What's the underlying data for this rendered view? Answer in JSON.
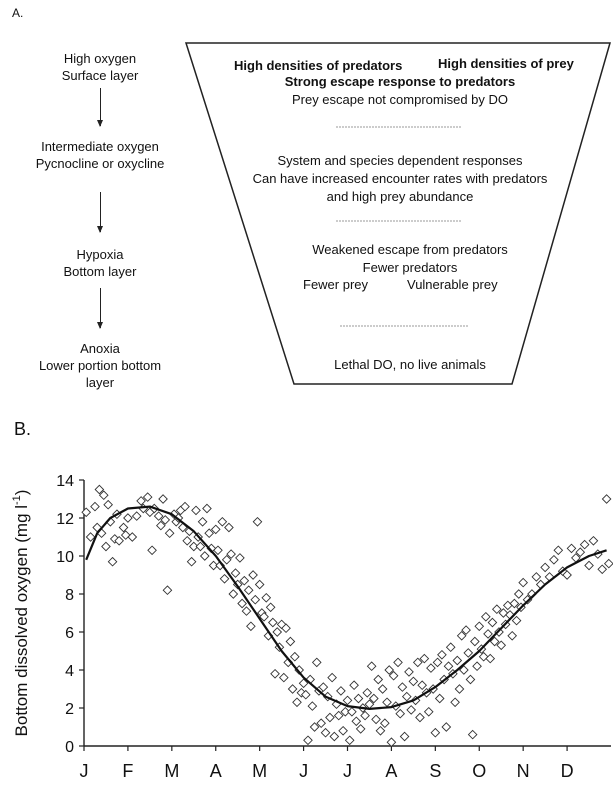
{
  "panel_a": {
    "label": "A.",
    "stages": [
      {
        "line1": "High oxygen",
        "line2": "Surface layer",
        "line3": ""
      },
      {
        "line1": "Intermediate oxygen",
        "line2": "Pycnocline or oxycline",
        "line3": ""
      },
      {
        "line1": "Hypoxia",
        "line2": "Bottom layer",
        "line3": ""
      },
      {
        "line1": "Anoxia",
        "line2": "Lower portion bottom",
        "line3": "layer"
      }
    ],
    "funnel": {
      "top_left": "High densities of predators",
      "top_right": "High densities of prey",
      "top_line2": "Strong escape response to predators",
      "top_line3": "Prey escape not compromised by DO",
      "mid_line1": "System and species dependent responses",
      "mid_line2": "Can have increased encounter rates with predators",
      "mid_line3": "and high prey abundance",
      "low_line1": "Weakened escape from predators",
      "low_line2": "Fewer predators",
      "low_left": "Fewer prey",
      "low_right": "Vulnerable prey",
      "bottom_line1": "Lethal DO, no live animals"
    }
  },
  "panel_b": {
    "label": "B.",
    "chart_data": {
      "type": "scatter",
      "title": "",
      "xlabel": "",
      "ylabel": "Bottom dissolved oxygen (mg l-1)",
      "ylabel_parts": {
        "main": "Bottom dissolved oxygen (mg l",
        "sup": "-1",
        "close": ")"
      },
      "ylim": [
        0,
        14
      ],
      "yticks": [
        0,
        2,
        4,
        6,
        8,
        10,
        12,
        14
      ],
      "xlim": [
        0,
        12
      ],
      "months": [
        "J",
        "F",
        "M",
        "A",
        "M",
        "J",
        "J",
        "A",
        "S",
        "O",
        "N",
        "D"
      ],
      "grid": false,
      "series": [
        {
          "marker": "diamond",
          "points": [
            [
              0.05,
              12.3
            ],
            [
              0.15,
              11.0
            ],
            [
              0.25,
              12.6
            ],
            [
              0.3,
              11.5
            ],
            [
              0.35,
              13.5
            ],
            [
              0.4,
              11.2
            ],
            [
              0.45,
              13.2
            ],
            [
              0.5,
              10.5
            ],
            [
              0.55,
              12.7
            ],
            [
              0.6,
              11.8
            ],
            [
              0.65,
              9.7
            ],
            [
              0.7,
              10.9
            ],
            [
              0.75,
              12.2
            ],
            [
              0.8,
              10.8
            ],
            [
              0.9,
              11.5
            ],
            [
              0.95,
              11.1
            ],
            [
              1.0,
              12.0
            ],
            [
              1.1,
              11.0
            ],
            [
              1.2,
              12.1
            ],
            [
              1.3,
              12.9
            ],
            [
              1.35,
              12.5
            ],
            [
              1.45,
              13.1
            ],
            [
              1.5,
              12.3
            ],
            [
              1.55,
              10.3
            ],
            [
              1.6,
              12.5
            ],
            [
              1.7,
              12.1
            ],
            [
              1.75,
              11.6
            ],
            [
              1.8,
              13.0
            ],
            [
              1.85,
              11.9
            ],
            [
              1.9,
              8.2
            ],
            [
              1.95,
              11.2
            ],
            [
              2.05,
              12.2
            ],
            [
              2.1,
              11.8
            ],
            [
              2.15,
              12.0
            ],
            [
              2.2,
              12.4
            ],
            [
              2.25,
              11.5
            ],
            [
              2.3,
              12.6
            ],
            [
              2.35,
              10.8
            ],
            [
              2.4,
              11.3
            ],
            [
              2.45,
              9.7
            ],
            [
              2.5,
              10.5
            ],
            [
              2.55,
              12.4
            ],
            [
              2.6,
              11.0
            ],
            [
              2.65,
              10.5
            ],
            [
              2.7,
              11.8
            ],
            [
              2.75,
              10.0
            ],
            [
              2.8,
              12.5
            ],
            [
              2.85,
              11.2
            ],
            [
              2.9,
              10.4
            ],
            [
              2.95,
              9.5
            ],
            [
              3.0,
              11.4
            ],
            [
              3.05,
              10.3
            ],
            [
              3.1,
              9.5
            ],
            [
              3.15,
              11.8
            ],
            [
              3.2,
              8.8
            ],
            [
              3.25,
              9.8
            ],
            [
              3.3,
              11.5
            ],
            [
              3.35,
              10.1
            ],
            [
              3.4,
              8.0
            ],
            [
              3.45,
              9.1
            ],
            [
              3.5,
              8.5
            ],
            [
              3.55,
              9.9
            ],
            [
              3.6,
              7.5
            ],
            [
              3.65,
              8.7
            ],
            [
              3.7,
              7.1
            ],
            [
              3.75,
              8.2
            ],
            [
              3.8,
              6.3
            ],
            [
              3.85,
              9.0
            ],
            [
              3.9,
              7.7
            ],
            [
              3.95,
              11.8
            ],
            [
              4.0,
              8.5
            ],
            [
              4.05,
              7.0
            ],
            [
              4.1,
              6.8
            ],
            [
              4.15,
              7.8
            ],
            [
              4.2,
              5.8
            ],
            [
              4.25,
              7.3
            ],
            [
              4.3,
              6.5
            ],
            [
              4.35,
              3.8
            ],
            [
              4.4,
              6.0
            ],
            [
              4.45,
              5.2
            ],
            [
              4.5,
              6.4
            ],
            [
              4.55,
              3.6
            ],
            [
              4.6,
              6.2
            ],
            [
              4.65,
              4.4
            ],
            [
              4.7,
              5.5
            ],
            [
              4.75,
              3.0
            ],
            [
              4.8,
              4.7
            ],
            [
              4.85,
              2.3
            ],
            [
              4.9,
              4.0
            ],
            [
              4.95,
              2.8
            ],
            [
              5.0,
              3.3
            ],
            [
              5.05,
              2.7
            ],
            [
              5.1,
              0.3
            ],
            [
              5.15,
              3.5
            ],
            [
              5.2,
              2.1
            ],
            [
              5.25,
              1.0
            ],
            [
              5.3,
              4.4
            ],
            [
              5.35,
              2.9
            ],
            [
              5.4,
              1.2
            ],
            [
              5.45,
              3.1
            ],
            [
              5.5,
              0.7
            ],
            [
              5.55,
              2.6
            ],
            [
              5.6,
              1.5
            ],
            [
              5.65,
              3.6
            ],
            [
              5.7,
              0.5
            ],
            [
              5.75,
              2.2
            ],
            [
              5.8,
              1.6
            ],
            [
              5.85,
              2.9
            ],
            [
              5.9,
              0.8
            ],
            [
              5.95,
              1.8
            ],
            [
              6.0,
              2.4
            ],
            [
              6.05,
              0.3
            ],
            [
              6.1,
              1.8
            ],
            [
              6.15,
              3.2
            ],
            [
              6.2,
              1.3
            ],
            [
              6.25,
              2.5
            ],
            [
              6.3,
              0.9
            ],
            [
              6.35,
              2.0
            ],
            [
              6.4,
              1.6
            ],
            [
              6.45,
              2.8
            ],
            [
              6.5,
              2.2
            ],
            [
              6.55,
              4.2
            ],
            [
              6.6,
              2.5
            ],
            [
              6.65,
              1.4
            ],
            [
              6.7,
              3.5
            ],
            [
              6.75,
              0.8
            ],
            [
              6.8,
              3.0
            ],
            [
              6.85,
              1.2
            ],
            [
              6.9,
              2.3
            ],
            [
              6.95,
              4.0
            ],
            [
              7.0,
              0.2
            ],
            [
              7.05,
              3.7
            ],
            [
              7.1,
              2.1
            ],
            [
              7.15,
              4.4
            ],
            [
              7.2,
              1.7
            ],
            [
              7.25,
              3.1
            ],
            [
              7.3,
              0.5
            ],
            [
              7.35,
              2.6
            ],
            [
              7.4,
              3.9
            ],
            [
              7.45,
              1.9
            ],
            [
              7.5,
              3.4
            ],
            [
              7.55,
              2.4
            ],
            [
              7.6,
              4.4
            ],
            [
              7.65,
              1.5
            ],
            [
              7.7,
              3.2
            ],
            [
              7.75,
              4.6
            ],
            [
              7.8,
              2.8
            ],
            [
              7.85,
              1.8
            ],
            [
              7.9,
              4.1
            ],
            [
              7.95,
              3.0
            ],
            [
              8.0,
              0.7
            ],
            [
              8.05,
              4.4
            ],
            [
              8.1,
              2.5
            ],
            [
              8.15,
              4.8
            ],
            [
              8.2,
              3.5
            ],
            [
              8.25,
              1.0
            ],
            [
              8.3,
              4.2
            ],
            [
              8.35,
              5.2
            ],
            [
              8.4,
              3.8
            ],
            [
              8.45,
              2.3
            ],
            [
              8.5,
              4.5
            ],
            [
              8.55,
              3.0
            ],
            [
              8.6,
              5.8
            ],
            [
              8.65,
              4.0
            ],
            [
              8.7,
              6.1
            ],
            [
              8.75,
              4.9
            ],
            [
              8.8,
              3.5
            ],
            [
              8.85,
              0.6
            ],
            [
              8.9,
              5.5
            ],
            [
              8.95,
              4.2
            ],
            [
              9.0,
              6.3
            ],
            [
              9.05,
              5.1
            ],
            [
              9.1,
              4.7
            ],
            [
              9.15,
              6.8
            ],
            [
              9.2,
              5.9
            ],
            [
              9.25,
              4.6
            ],
            [
              9.3,
              6.5
            ],
            [
              9.35,
              5.5
            ],
            [
              9.4,
              7.2
            ],
            [
              9.45,
              6.0
            ],
            [
              9.5,
              5.3
            ],
            [
              9.55,
              7.0
            ],
            [
              9.6,
              6.4
            ],
            [
              9.65,
              7.4
            ],
            [
              9.7,
              6.9
            ],
            [
              9.75,
              5.8
            ],
            [
              9.8,
              7.5
            ],
            [
              9.85,
              6.6
            ],
            [
              9.9,
              8.0
            ],
            [
              9.95,
              7.3
            ],
            [
              10.0,
              8.6
            ],
            [
              10.1,
              7.7
            ],
            [
              10.2,
              8.0
            ],
            [
              10.3,
              8.9
            ],
            [
              10.4,
              8.5
            ],
            [
              10.5,
              9.4
            ],
            [
              10.6,
              8.9
            ],
            [
              10.7,
              9.8
            ],
            [
              10.8,
              10.3
            ],
            [
              10.9,
              9.2
            ],
            [
              11.0,
              9.0
            ],
            [
              11.1,
              10.4
            ],
            [
              11.2,
              9.9
            ],
            [
              11.3,
              10.2
            ],
            [
              11.4,
              10.6
            ],
            [
              11.5,
              9.5
            ],
            [
              11.6,
              10.8
            ],
            [
              11.7,
              10.1
            ],
            [
              11.8,
              9.3
            ],
            [
              11.9,
              13.0
            ],
            [
              11.95,
              9.6
            ]
          ]
        },
        {
          "type": "line",
          "points": [
            [
              0.05,
              9.8
            ],
            [
              0.3,
              11.2
            ],
            [
              0.6,
              12.0
            ],
            [
              1.0,
              12.5
            ],
            [
              1.5,
              12.6
            ],
            [
              2.0,
              12.2
            ],
            [
              2.5,
              11.3
            ],
            [
              3.0,
              10.0
            ],
            [
              3.5,
              8.4
            ],
            [
              4.0,
              6.7
            ],
            [
              4.5,
              5.0
            ],
            [
              5.0,
              3.6
            ],
            [
              5.5,
              2.6
            ],
            [
              6.0,
              2.1
            ],
            [
              6.5,
              1.95
            ],
            [
              7.0,
              2.05
            ],
            [
              7.5,
              2.4
            ],
            [
              8.0,
              3.1
            ],
            [
              8.5,
              4.0
            ],
            [
              9.0,
              5.0
            ],
            [
              9.5,
              6.2
            ],
            [
              10.0,
              7.4
            ],
            [
              10.5,
              8.5
            ],
            [
              11.0,
              9.4
            ],
            [
              11.5,
              10.0
            ],
            [
              11.9,
              10.3
            ]
          ]
        }
      ]
    }
  }
}
